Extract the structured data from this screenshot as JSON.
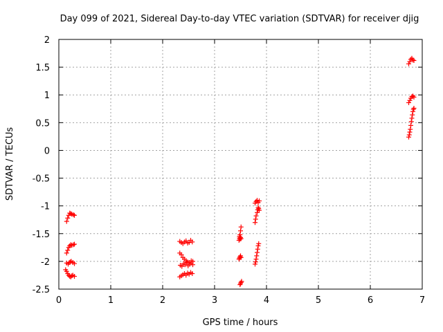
{
  "chart_data": {
    "type": "scatter",
    "title": "Day 099 of 2021, Sidereal Day-to-day VTEC variation (SDTVAR) for receiver djig",
    "xlabel": "GPS time / hours",
    "ylabel": "SDTVAR / TECUs",
    "xlim": [
      0,
      7
    ],
    "ylim": [
      -2.5,
      2
    ],
    "xticks": [
      "0",
      "1",
      "2",
      "3",
      "4",
      "5",
      "6",
      "7"
    ],
    "yticks": [
      "2",
      "1.5",
      "1",
      "0.5",
      "0",
      "-0.5",
      "-1",
      "-1.5",
      "-2",
      "-2.5"
    ],
    "grid": true,
    "marker": "+",
    "color": "#ff0000",
    "series": [
      {
        "x": [
          0.15,
          0.17,
          0.19,
          0.21,
          0.23,
          0.25,
          0.28,
          0.3,
          0.15,
          0.17,
          0.19,
          0.21,
          0.23,
          0.25,
          0.28,
          0.3,
          0.15,
          0.18,
          0.2,
          0.22,
          0.24,
          0.27,
          0.3,
          0.13,
          0.15,
          0.17,
          0.19,
          0.21,
          0.23,
          0.25,
          0.27,
          0.3,
          2.33,
          2.36,
          2.39,
          2.42,
          2.45,
          2.48,
          2.51,
          2.54,
          2.57,
          2.33,
          2.36,
          2.39,
          2.42,
          2.45,
          2.48,
          2.51,
          2.55,
          2.58,
          2.34,
          2.37,
          2.4,
          2.43,
          2.46,
          2.49,
          2.52,
          2.55,
          2.58,
          2.33,
          2.36,
          2.39,
          2.42,
          2.45,
          2.48,
          2.51,
          2.54,
          2.57,
          3.47,
          3.48,
          3.49,
          3.5,
          3.51,
          3.47,
          3.48,
          3.49,
          3.5,
          3.51,
          3.49,
          3.5,
          3.51,
          3.52,
          3.48,
          3.49,
          3.5,
          3.51,
          3.78,
          3.79,
          3.8,
          3.82,
          3.83,
          3.84,
          3.85,
          3.86,
          3.78,
          3.8,
          3.82,
          3.84,
          3.86,
          3.78,
          3.79,
          3.8,
          3.81,
          3.82,
          3.83,
          3.84,
          3.85,
          6.74,
          6.76,
          6.78,
          6.8,
          6.82,
          6.84,
          6.74,
          6.76,
          6.78,
          6.8,
          6.82,
          6.84,
          6.74,
          6.75,
          6.76,
          6.77,
          6.78,
          6.79,
          6.8,
          6.81,
          6.82,
          6.83,
          6.84
        ],
        "y": [
          -1.28,
          -1.22,
          -1.17,
          -1.13,
          -1.14,
          -1.15,
          -1.16,
          -1.17,
          -1.85,
          -1.8,
          -1.75,
          -1.72,
          -1.7,
          -1.71,
          -1.7,
          -1.69,
          -2.03,
          -2.05,
          -2.02,
          -2.01,
          -2.0,
          -2.02,
          -2.04,
          -2.15,
          -2.18,
          -2.22,
          -2.25,
          -2.27,
          -2.28,
          -2.26,
          -2.25,
          -2.27,
          -1.64,
          -1.66,
          -1.68,
          -1.65,
          -1.63,
          -1.67,
          -1.66,
          -1.62,
          -1.65,
          -1.85,
          -1.88,
          -1.93,
          -1.96,
          -1.99,
          -2.01,
          -2.02,
          -1.99,
          -2.0,
          -2.07,
          -2.09,
          -2.04,
          -2.06,
          -2.02,
          -2.08,
          -2.05,
          -2.03,
          -2.06,
          -2.28,
          -2.26,
          -2.24,
          -2.22,
          -2.25,
          -2.21,
          -2.23,
          -2.2,
          -2.22,
          -1.62,
          -1.58,
          -1.52,
          -1.45,
          -1.38,
          -1.96,
          -1.94,
          -1.92,
          -1.9,
          -1.93,
          -2.42,
          -2.4,
          -2.38,
          -2.36,
          -1.55,
          -1.6,
          -1.57,
          -1.59,
          -1.3,
          -1.24,
          -1.18,
          -1.12,
          -1.07,
          -1.03,
          -1.05,
          -1.08,
          -0.95,
          -0.92,
          -0.9,
          -0.94,
          -0.91,
          -2.05,
          -2.01,
          -1.96,
          -1.9,
          -1.84,
          -1.78,
          -1.72,
          -1.68,
          1.56,
          1.6,
          1.64,
          1.66,
          1.63,
          1.62,
          0.86,
          0.9,
          0.94,
          0.97,
          0.98,
          0.96,
          0.24,
          0.28,
          0.33,
          0.38,
          0.45,
          0.52,
          0.58,
          0.64,
          0.7,
          0.74,
          0.76
        ]
      }
    ]
  }
}
